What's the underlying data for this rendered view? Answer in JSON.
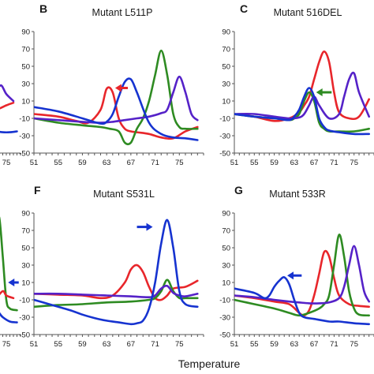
{
  "xlabel": "Temperature",
  "colors": {
    "red": "#e8262b",
    "green": "#2e8b22",
    "blue": "#1633d0",
    "purple": "#5522c8"
  },
  "chart_data": [
    {
      "type": "line",
      "letter": "",
      "title": "",
      "xticks": [
        "75"
      ],
      "yticks": [],
      "series": [
        {
          "color": "#e8262b",
          "x": [
            63,
            66,
            69,
            72,
            75,
            77
          ],
          "y": [
            10,
            6,
            2,
            0,
            5,
            8
          ]
        },
        {
          "color": "#5522c8",
          "x": [
            63,
            68,
            70,
            72,
            73.5,
            75,
            77
          ],
          "y": [
            6,
            8,
            5,
            20,
            28,
            18,
            10
          ]
        },
        {
          "color": "#1633d0",
          "x": [
            63,
            66,
            69,
            72,
            74,
            76,
            78
          ],
          "y": [
            -25,
            -26,
            -25,
            -25,
            -26,
            -26,
            -25
          ]
        }
      ],
      "annotations": []
    },
    {
      "type": "line",
      "letter": "B",
      "title": "Mutant L511P",
      "xticks": [
        "51",
        "55",
        "59",
        "63",
        "67",
        "71",
        "75"
      ],
      "yticks": [
        "90",
        "70",
        "50",
        "30",
        "10",
        "-10",
        "-30",
        "-50"
      ],
      "ylim": [
        -50,
        90
      ],
      "series": [
        {
          "name": "",
          "color": "#e8262b",
          "x": [
            51,
            55,
            58,
            60,
            62,
            63,
            64,
            65,
            66,
            67,
            68,
            70,
            72,
            74,
            76,
            78
          ],
          "y": [
            -5,
            -8,
            -13,
            -15,
            0,
            24,
            20,
            -10,
            -22,
            -25,
            -26,
            -28,
            -32,
            -33,
            -25,
            -20
          ]
        },
        {
          "name": "",
          "color": "#2e8b22",
          "x": [
            51,
            55,
            59,
            62,
            63.5,
            65,
            66,
            67,
            68,
            69,
            70,
            71,
            72,
            73,
            74,
            75,
            76,
            78
          ],
          "y": [
            -10,
            -15,
            -18,
            -20,
            -22,
            -25,
            -38,
            -38,
            -22,
            -10,
            10,
            40,
            68,
            40,
            -5,
            -20,
            -22,
            -22
          ]
        },
        {
          "name": "",
          "color": "#5522c8",
          "x": [
            51,
            55,
            59,
            62,
            64,
            66,
            68,
            70,
            72,
            73,
            74,
            75,
            76,
            77,
            78
          ],
          "y": [
            -10,
            -12,
            -14,
            -15,
            -14,
            -12,
            -10,
            -8,
            -4,
            0,
            20,
            38,
            20,
            -5,
            -12
          ]
        },
        {
          "name": "",
          "color": "#1633d0",
          "x": [
            51,
            55,
            59,
            62,
            63,
            64,
            65,
            66,
            67,
            68,
            70,
            72,
            74,
            76,
            78
          ],
          "y": [
            3,
            -2,
            -10,
            -16,
            -14,
            -5,
            15,
            32,
            35,
            20,
            -15,
            -28,
            -32,
            -33,
            -35
          ]
        }
      ],
      "annotations": [
        {
          "kind": "arrow",
          "color": "#e8262b",
          "x1": 66.5,
          "y1": 25,
          "x2": 64.4,
          "y2": 25
        }
      ]
    },
    {
      "type": "line",
      "letter": "C",
      "title": "Mutant 516DEL",
      "xticks": [
        "51",
        "55",
        "59",
        "63",
        "67",
        "71",
        "75"
      ],
      "yticks": [
        "90",
        "70",
        "50",
        "30",
        "10",
        "-10",
        "-30",
        "-50"
      ],
      "ylim": [
        -50,
        90
      ],
      "series": [
        {
          "name": "",
          "color": "#e8262b",
          "x": [
            51,
            55,
            59,
            62,
            64,
            65,
            66,
            67,
            68,
            69,
            70,
            71,
            72,
            74,
            76,
            78
          ],
          "y": [
            -5,
            -8,
            -13,
            -10,
            -3,
            5,
            15,
            35,
            55,
            67,
            55,
            20,
            -3,
            -10,
            -8,
            12
          ]
        },
        {
          "name": "",
          "color": "#2e8b22",
          "x": [
            51,
            55,
            59,
            62,
            63,
            64,
            65,
            66,
            67,
            68,
            69,
            70,
            72,
            75,
            78
          ],
          "y": [
            -5,
            -8,
            -10,
            -12,
            -10,
            -5,
            10,
            20,
            10,
            -15,
            -22,
            -25,
            -25,
            -25,
            -22
          ]
        },
        {
          "name": "",
          "color": "#5522c8",
          "x": [
            51,
            55,
            59,
            62,
            64,
            65,
            66,
            67,
            68,
            70,
            72,
            73,
            74,
            75,
            76,
            78
          ],
          "y": [
            -5,
            -5,
            -8,
            -10,
            -9,
            -5,
            5,
            15,
            5,
            -10,
            -5,
            15,
            35,
            42,
            20,
            -8
          ]
        },
        {
          "name": "",
          "color": "#1633d0",
          "x": [
            51,
            55,
            59,
            62,
            63,
            64,
            65,
            66,
            67,
            68,
            69,
            70,
            72,
            75,
            78
          ],
          "y": [
            -5,
            -8,
            -10,
            -12,
            -8,
            0,
            15,
            25,
            15,
            -10,
            -20,
            -24,
            -26,
            -28,
            -28
          ]
        }
      ],
      "annotations": [
        {
          "kind": "arrow",
          "color": "#2e8b22",
          "x1": 70.5,
          "y1": 20,
          "x2": 67.4,
          "y2": 20
        }
      ]
    },
    {
      "type": "line",
      "letter": "",
      "title": "",
      "xticks": [
        "75"
      ],
      "yticks": [],
      "series": [
        {
          "color": "#2e8b22",
          "x": [
            63,
            66,
            68,
            70,
            71,
            72,
            73,
            74,
            75,
            76,
            78
          ],
          "y": [
            -15,
            -10,
            -5,
            10,
            40,
            70,
            85,
            40,
            -10,
            -20,
            -22
          ]
        },
        {
          "color": "#e8262b",
          "x": [
            63,
            68,
            70,
            72,
            74,
            75,
            77
          ],
          "y": [
            -5,
            -8,
            -10,
            -8,
            0,
            -5,
            -8
          ]
        },
        {
          "color": "#1633d0",
          "x": [
            63,
            66,
            69,
            71,
            72,
            73,
            74,
            76,
            78
          ],
          "y": [
            -25,
            -27,
            -28,
            -22,
            -18,
            -25,
            -30,
            -35,
            -36
          ]
        }
      ],
      "annotations": [
        {
          "kind": "arrow",
          "color": "#1633d0",
          "x1": 78.5,
          "y1": 10,
          "x2": 75.5,
          "y2": 10
        }
      ]
    },
    {
      "type": "line",
      "letter": "F",
      "title": "Mutant S531L",
      "xticks": [
        "51",
        "55",
        "59",
        "63",
        "67",
        "71",
        "75"
      ],
      "yticks": [
        "90",
        "70",
        "50",
        "30",
        "10",
        "-10",
        "-30",
        "-50"
      ],
      "ylim": [
        -50,
        90
      ],
      "series": [
        {
          "name": "",
          "color": "#e8262b",
          "x": [
            51,
            55,
            59,
            62,
            64,
            66,
            67,
            68,
            69,
            70,
            71,
            72,
            73,
            74,
            76,
            78
          ],
          "y": [
            -3,
            -4,
            -5,
            -8,
            -5,
            10,
            25,
            30,
            22,
            5,
            -8,
            -10,
            -5,
            3,
            5,
            12
          ]
        },
        {
          "name": "",
          "color": "#2e8b22",
          "x": [
            51,
            55,
            59,
            63,
            67,
            70,
            71,
            72,
            73,
            74,
            75,
            76,
            78
          ],
          "y": [
            -18,
            -16,
            -15,
            -13,
            -12,
            -10,
            -8,
            0,
            13,
            0,
            -8,
            -8,
            -8
          ]
        },
        {
          "name": "",
          "color": "#5522c8",
          "x": [
            51,
            55,
            59,
            63,
            67,
            70,
            71,
            72,
            73,
            74,
            75,
            76,
            78
          ],
          "y": [
            -3,
            -3,
            -4,
            -5,
            -6,
            -7,
            -5,
            3,
            6,
            -2,
            -5,
            -6,
            -3
          ]
        },
        {
          "name": "",
          "color": "#1633d0",
          "x": [
            51,
            53,
            55,
            57,
            59,
            61,
            63,
            65,
            67,
            68,
            69,
            70,
            71,
            72,
            73,
            74,
            75,
            76,
            78
          ],
          "y": [
            -10,
            -14,
            -18,
            -22,
            -27,
            -31,
            -34,
            -36,
            -38,
            -37,
            -34,
            -20,
            10,
            55,
            82,
            50,
            0,
            -15,
            -18
          ]
        }
      ],
      "annotations": [
        {
          "kind": "arrow",
          "color": "#1633d0",
          "x1": 68,
          "y1": 74,
          "x2": 70.6,
          "y2": 74
        }
      ]
    },
    {
      "type": "line",
      "letter": "G",
      "title": "Mutant 533R",
      "xticks": [
        "51",
        "55",
        "59",
        "63",
        "67",
        "71",
        "75"
      ],
      "yticks": [
        "90",
        "70",
        "50",
        "30",
        "10",
        "-10",
        "-30",
        "-50"
      ],
      "ylim": [
        -50,
        90
      ],
      "series": [
        {
          "name": "",
          "color": "#e8262b",
          "x": [
            51,
            55,
            59,
            62,
            64,
            65,
            66,
            67,
            68,
            69,
            70,
            71,
            72,
            74,
            76,
            78
          ],
          "y": [
            -5,
            -8,
            -12,
            -15,
            -25,
            -28,
            -22,
            -5,
            20,
            45,
            40,
            15,
            -5,
            -15,
            -17,
            -18
          ]
        },
        {
          "name": "",
          "color": "#2e8b22",
          "x": [
            51,
            55,
            59,
            62,
            64,
            66,
            68,
            69,
            70,
            71,
            72,
            73,
            74,
            75,
            76,
            78
          ],
          "y": [
            -10,
            -15,
            -20,
            -25,
            -28,
            -25,
            -20,
            -15,
            -5,
            30,
            65,
            40,
            0,
            -20,
            -27,
            -28
          ]
        },
        {
          "name": "",
          "color": "#5522c8",
          "x": [
            51,
            55,
            59,
            62,
            64,
            66,
            68,
            70,
            72,
            73,
            74,
            75,
            76,
            77,
            78
          ],
          "y": [
            -5,
            -7,
            -10,
            -12,
            -13,
            -14,
            -14,
            -13,
            -8,
            5,
            30,
            52,
            30,
            0,
            -12
          ]
        },
        {
          "name": "",
          "color": "#1633d0",
          "x": [
            51,
            55,
            57,
            58,
            59,
            60,
            61,
            62,
            63,
            64,
            65,
            67,
            70,
            72,
            75,
            78
          ],
          "y": [
            3,
            -2,
            -8,
            -5,
            5,
            12,
            16,
            8,
            -10,
            -25,
            -30,
            -32,
            -35,
            -35,
            -37,
            -38
          ]
        }
      ],
      "annotations": [
        {
          "kind": "arrow",
          "color": "#1633d0",
          "x1": 64.5,
          "y1": 18,
          "x2": 61.6,
          "y2": 18
        }
      ]
    }
  ]
}
